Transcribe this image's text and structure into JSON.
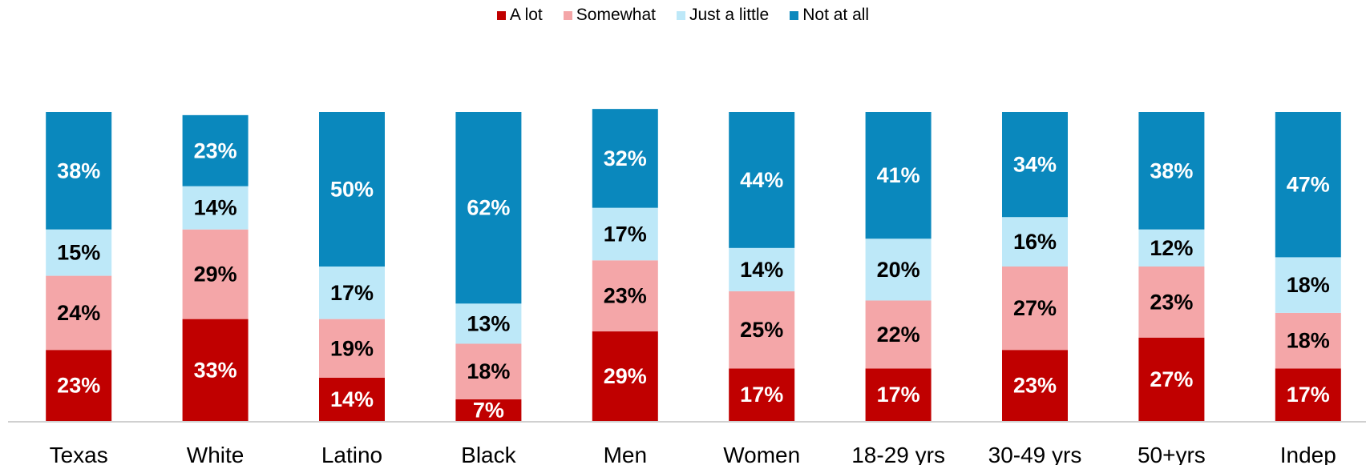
{
  "chart_data": {
    "type": "bar",
    "stacked": true,
    "categories": [
      "Texas",
      "White",
      "Latino",
      "Black",
      "Men",
      "Women",
      "18-29 yrs",
      "30-49 yrs",
      "50+yrs",
      "Indep"
    ],
    "series": [
      {
        "name": "A lot",
        "color": "#c00000",
        "label_color": "#ffffff",
        "values": [
          23,
          33,
          14,
          7,
          29,
          17,
          17,
          23,
          27,
          17
        ]
      },
      {
        "name": "Somewhat",
        "color": "#f4a6a8",
        "label_color": "#000000",
        "values": [
          24,
          29,
          19,
          18,
          23,
          25,
          22,
          27,
          23,
          18
        ]
      },
      {
        "name": "Just a little",
        "color": "#bde8f8",
        "label_color": "#000000",
        "values": [
          15,
          14,
          17,
          13,
          17,
          14,
          20,
          16,
          12,
          18
        ]
      },
      {
        "name": "Not at all",
        "color": "#0a88bd",
        "label_color": "#ffffff",
        "values": [
          38,
          23,
          50,
          62,
          32,
          44,
          41,
          34,
          38,
          47
        ]
      }
    ],
    "value_suffix": "%",
    "ylim": [
      0,
      100
    ],
    "legend_position": "top",
    "grid": false,
    "title": "",
    "xlabel": "",
    "ylabel": ""
  }
}
